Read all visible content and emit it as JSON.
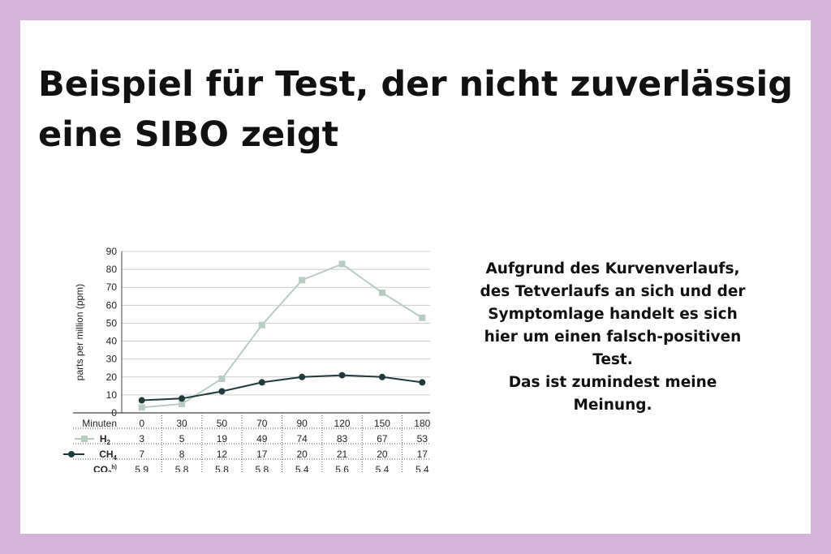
{
  "title_lines": [
    "Beispiel für Test, der nicht zuverlässig",
    "eine SIBO zeigt"
  ],
  "comment_lines": [
    "Aufgrund des Kurvenverlaufs,",
    "des Tetverlaufs an sich und der",
    "Symptomlage handelt es sich",
    "hier um einen falsch-positiven",
    "Test.",
    "Das ist zumindest meine",
    "Meinung."
  ],
  "colors": {
    "frame": "#d4b2d9",
    "h2_series": "#b6cdbf",
    "ch4_series": "#1f3a3c",
    "grid": "#cccccc"
  },
  "chart_data": {
    "type": "line",
    "ylabel": "parts per million (ppm)",
    "ylim": [
      0,
      90
    ],
    "yticks": [
      0,
      10,
      20,
      30,
      40,
      50,
      60,
      70,
      80,
      90
    ],
    "grid": true,
    "x_row_label": "Minuten",
    "x": [
      "0",
      "30",
      "50",
      "70",
      "90",
      "120",
      "150",
      "180"
    ],
    "series": [
      {
        "name": "H2",
        "label_main": "H",
        "label_sub": "2",
        "marker": "square",
        "values": [
          3,
          5,
          19,
          49,
          74,
          83,
          67,
          53
        ]
      },
      {
        "name": "CH4",
        "label_main": "CH",
        "label_sub": "4",
        "marker": "circle",
        "values": [
          7,
          8,
          12,
          17,
          20,
          21,
          20,
          17
        ]
      }
    ],
    "extra_row": {
      "label_main": "CO",
      "label_sub": "2",
      "label_sup": "h)",
      "values": [
        "5,9",
        "5,8",
        "5,8",
        "5,8",
        "5,4",
        "5,6",
        "5,4",
        "5,4"
      ]
    }
  }
}
